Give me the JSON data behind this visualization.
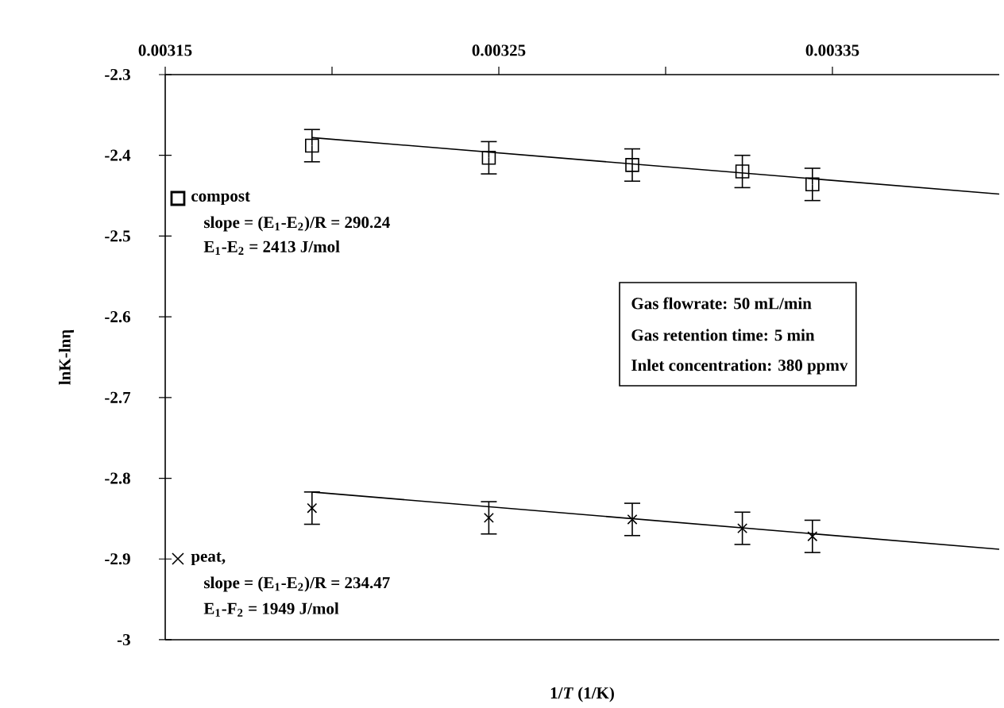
{
  "chart_data": {
    "type": "scatter",
    "xlabel": "1/*T* (1/K)",
    "ylabel": "lnK-lnη",
    "xlim": [
      0.00315,
      0.0034
    ],
    "ylim": [
      -3,
      -2.3
    ],
    "xticks": [
      0.00315,
      {
        "value": 0.0032,
        "label": null
      },
      0.00325,
      {
        "value": 0.0033,
        "label": null
      },
      0.00335
    ],
    "yticks": [
      -3,
      -2.9,
      -2.8,
      -2.7,
      -2.6,
      -2.5,
      -2.4,
      -2.3
    ],
    "grid": false,
    "legend": "left",
    "series": [
      {
        "name": "compost",
        "marker": "square",
        "color": "#000000",
        "x": [
          0.003194,
          0.003247,
          0.00329,
          0.003323,
          0.003344
        ],
        "values": [
          -2.388,
          -2.403,
          -2.412,
          -2.42,
          -2.436
        ],
        "errors": [
          0.02,
          0.02,
          0.02,
          0.02,
          0.02
        ]
      },
      {
        "name": "peat,",
        "marker": "cross",
        "color": "#000000",
        "x": [
          0.003194,
          0.003247,
          0.00329,
          0.003323,
          0.003344
        ],
        "values": [
          -2.837,
          -2.849,
          -2.851,
          -2.862,
          -2.872
        ],
        "errors": [
          0.02,
          0.02,
          0.02,
          0.02,
          0.02
        ]
      },
      {
        "type": "line",
        "marker": "none",
        "line_style": "solid",
        "color": "#000000",
        "x": [
          0.003194,
          0.0034
        ],
        "values": [
          -2.378,
          -2.448
        ]
      },
      {
        "type": "line",
        "marker": "none",
        "line_style": "solid",
        "color": "#000000",
        "x": [
          0.003194,
          0.0034
        ],
        "values": [
          -2.817,
          -2.888
        ]
      }
    ],
    "annotations": [
      "slope = (E$_{1}$-E$_{2}$)/R = 290.24",
      "E$_{1}$-E$_{2}$ = 2413 J/mol",
      "slope = (E$_{1}$-E$_{2}$)/R = 234.47",
      "E$_{1}$-F$_{2}$ = 1949 J/mol",
      "Gas flowrate: 50 mL/min",
      "Gas retention time: 5 min",
      "Inlet concentration: 380 ppmv"
    ]
  }
}
